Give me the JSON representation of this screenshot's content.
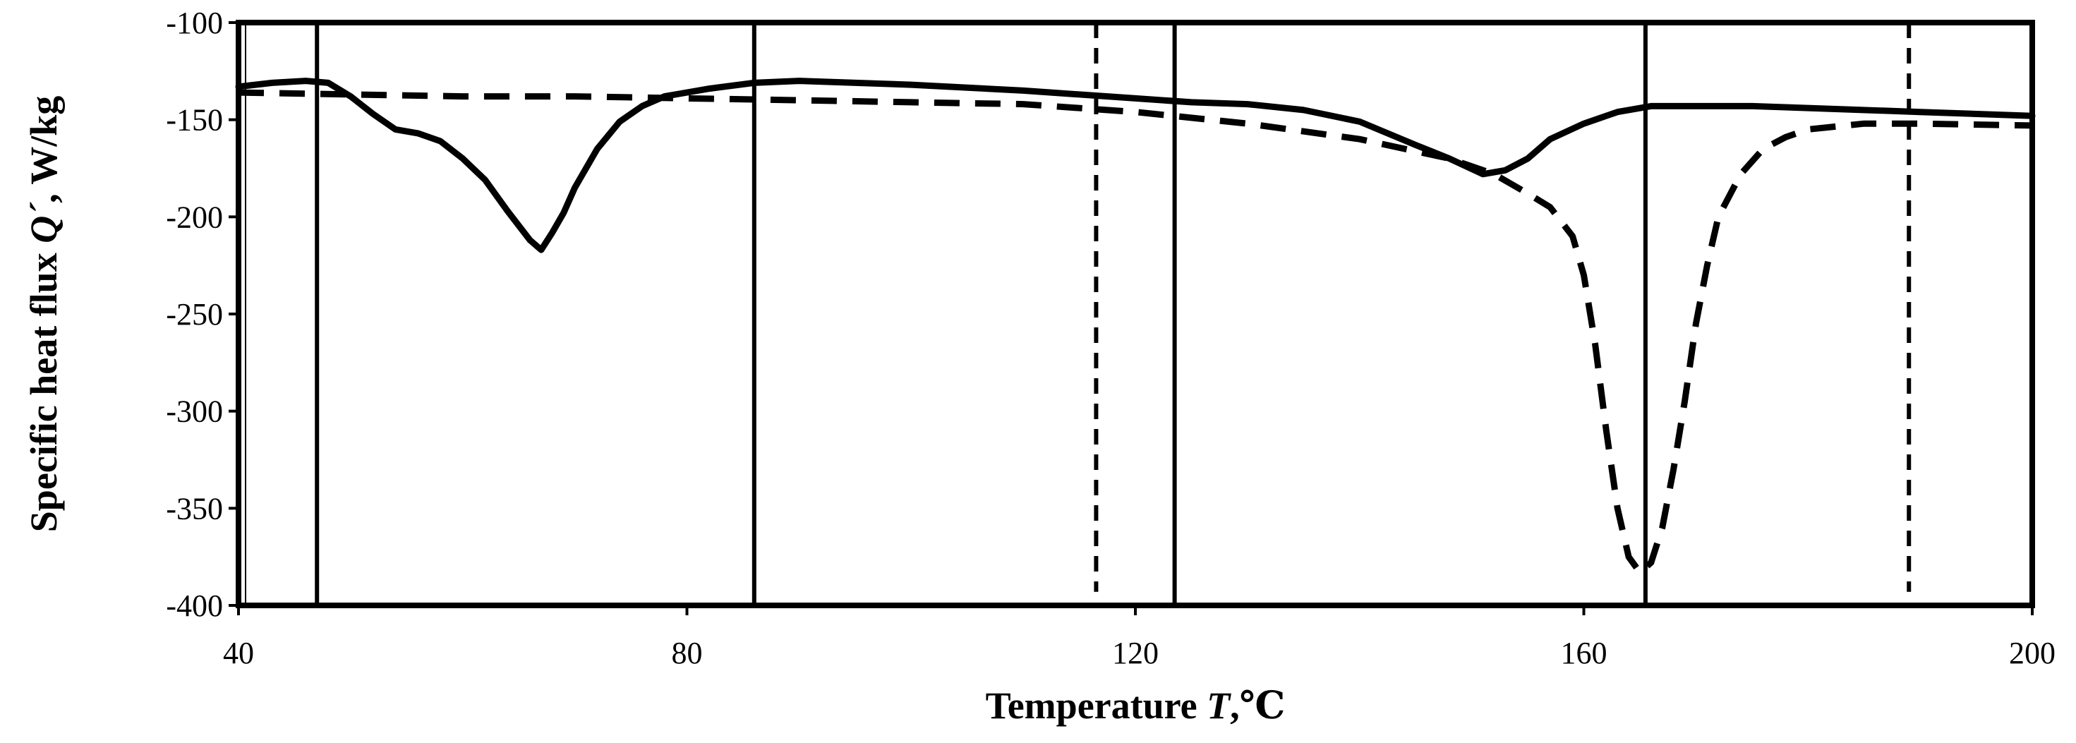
{
  "chart_data": {
    "type": "line",
    "title": "",
    "xlabel": {
      "text": "Temperature ",
      "italic": "T",
      "unit": ",℃"
    },
    "ylabel": {
      "text": "Specific heat flux ",
      "italic": "Q´",
      "unit": ", W/kg"
    },
    "xlim": [
      40,
      200
    ],
    "ylim": [
      -400,
      -100
    ],
    "xticks": [
      40,
      80,
      120,
      160,
      200
    ],
    "yticks": [
      -100,
      -150,
      -200,
      -250,
      -300,
      -350,
      -400
    ],
    "grid": false,
    "legend": "none",
    "series": [
      {
        "name": "solid",
        "style": "solid",
        "color": "#000000",
        "points": [
          [
            40,
            -133
          ],
          [
            43,
            -131
          ],
          [
            46,
            -130
          ],
          [
            48,
            -131
          ],
          [
            50,
            -138
          ],
          [
            52,
            -147
          ],
          [
            54,
            -155
          ],
          [
            56,
            -157
          ],
          [
            58,
            -161
          ],
          [
            60,
            -170
          ],
          [
            62,
            -181
          ],
          [
            64,
            -197
          ],
          [
            66,
            -212
          ],
          [
            67,
            -217
          ],
          [
            68,
            -208
          ],
          [
            69,
            -198
          ],
          [
            70,
            -185
          ],
          [
            72,
            -165
          ],
          [
            74,
            -151
          ],
          [
            76,
            -143
          ],
          [
            78,
            -138
          ],
          [
            82,
            -134
          ],
          [
            86,
            -131
          ],
          [
            90,
            -130
          ],
          [
            100,
            -132
          ],
          [
            110,
            -135
          ],
          [
            120,
            -139
          ],
          [
            125,
            -141
          ],
          [
            130,
            -142
          ],
          [
            135,
            -145
          ],
          [
            140,
            -151
          ],
          [
            145,
            -163
          ],
          [
            148,
            -170
          ],
          [
            151,
            -178
          ],
          [
            153,
            -176
          ],
          [
            155,
            -170
          ],
          [
            157,
            -160
          ],
          [
            160,
            -152
          ],
          [
            163,
            -146
          ],
          [
            166,
            -143
          ],
          [
            170,
            -143
          ],
          [
            175,
            -143
          ],
          [
            180,
            -144
          ],
          [
            190,
            -146
          ],
          [
            200,
            -148
          ]
        ]
      },
      {
        "name": "dashed",
        "style": "dashed",
        "color": "#000000",
        "points": [
          [
            40,
            -136
          ],
          [
            50,
            -137
          ],
          [
            60,
            -138
          ],
          [
            70,
            -138
          ],
          [
            80,
            -139
          ],
          [
            90,
            -140
          ],
          [
            100,
            -141
          ],
          [
            110,
            -142
          ],
          [
            120,
            -146
          ],
          [
            130,
            -152
          ],
          [
            140,
            -160
          ],
          [
            148,
            -170
          ],
          [
            152,
            -178
          ],
          [
            155,
            -188
          ],
          [
            157,
            -195
          ],
          [
            159,
            -210
          ],
          [
            160,
            -230
          ],
          [
            161,
            -265
          ],
          [
            162,
            -310
          ],
          [
            163,
            -350
          ],
          [
            164,
            -375
          ],
          [
            165,
            -383
          ],
          [
            166,
            -378
          ],
          [
            167,
            -360
          ],
          [
            168,
            -330
          ],
          [
            169,
            -295
          ],
          [
            170,
            -255
          ],
          [
            171,
            -225
          ],
          [
            172,
            -200
          ],
          [
            174,
            -178
          ],
          [
            176,
            -165
          ],
          [
            178,
            -159
          ],
          [
            180,
            -155
          ],
          [
            185,
            -152
          ],
          [
            190,
            -152
          ],
          [
            200,
            -153
          ]
        ]
      }
    ],
    "vertical_lines": [
      {
        "x": 47,
        "style": "solid",
        "y_from": -100,
        "y_to": -400
      },
      {
        "x": 86,
        "style": "solid",
        "y_from": -100,
        "y_to": -400
      },
      {
        "x": 116.5,
        "style": "dashed",
        "y_from": -100,
        "y_to": -393
      },
      {
        "x": 123.5,
        "style": "solid",
        "y_from": -100,
        "y_to": -400
      },
      {
        "x": 165.5,
        "style": "solid",
        "y_from": -100,
        "y_to": -400
      },
      {
        "x": 189,
        "style": "dashed",
        "y_from": -100,
        "y_to": -393
      }
    ]
  }
}
